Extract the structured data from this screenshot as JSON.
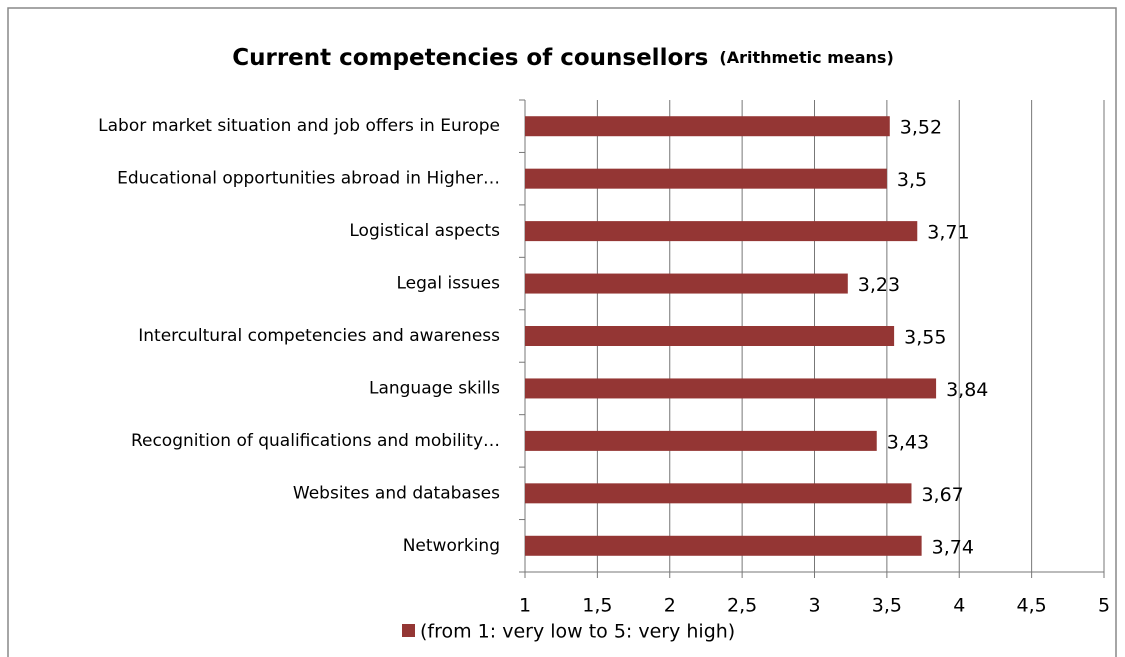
{
  "chart_data": {
    "type": "bar",
    "orientation": "horizontal",
    "title": "Current competencies of counsellors",
    "subtitle": "(Arithmetic means)",
    "categories": [
      "Labor market situation and job offers in Europe",
      "Educational opportunities abroad in Higher…",
      "Logistical aspects",
      "Legal issues",
      "Intercultural competencies and awareness",
      "Language skills",
      "Recognition of qualifications and mobility…",
      "Websites and databases",
      "Networking"
    ],
    "series": [
      {
        "name": "(from 1: very low to 5: very high)",
        "color": "#943634",
        "values": [
          3.52,
          3.5,
          3.71,
          3.23,
          3.55,
          3.84,
          3.43,
          3.67,
          3.74
        ],
        "value_labels": [
          "3,52",
          "3,5",
          "3,71",
          "3,23",
          "3,55",
          "3,84",
          "3,43",
          "3,67",
          "3,74"
        ]
      }
    ],
    "xlim": [
      1,
      5
    ],
    "xticks": [
      1,
      {
        "value": 1.5,
        "label": "1,5"
      },
      2,
      {
        "value": 2.5,
        "label": "2,5"
      },
      3,
      {
        "value": 3.5,
        "label": "3,5"
      },
      4,
      {
        "value": 4.5,
        "label": "4,5"
      },
      5
    ],
    "grid": true,
    "legend": "bottom"
  }
}
